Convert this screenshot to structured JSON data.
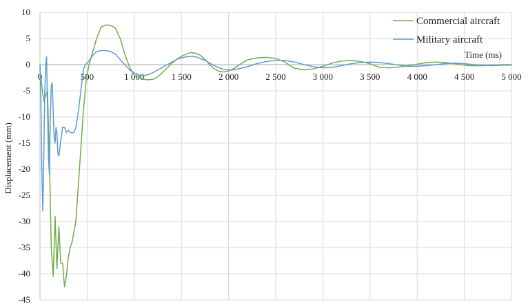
{
  "chart_data": {
    "type": "line",
    "title": "",
    "xlabel": "Time (ms)",
    "ylabel": "Displacement (mm)",
    "xlim": [
      0,
      5000
    ],
    "ylim": [
      -45,
      10
    ],
    "x_ticks": [
      0,
      500,
      1000,
      1500,
      2000,
      2500,
      3000,
      3500,
      4000,
      4500,
      5000
    ],
    "x_tick_labels": [
      "0",
      "500",
      "1 000",
      "1 500",
      "2 000",
      "2 500",
      "3 000",
      "3 500",
      "4 000",
      "4 500",
      "5 000"
    ],
    "y_ticks": [
      10,
      5,
      0,
      -5,
      -10,
      -15,
      -20,
      -25,
      -30,
      -35,
      -40,
      -45
    ],
    "y_tick_labels": [
      "10",
      "5",
      "0",
      "-5",
      "-10",
      "-15",
      "-20",
      "-25",
      "-30",
      "-35",
      "-40",
      "-45"
    ],
    "grid": true,
    "legend_position": "top-right",
    "series": [
      {
        "name": "Commercial aircraft",
        "color": "#70ad47",
        "x": [
          0,
          20,
          40,
          60,
          80,
          100,
          120,
          140,
          160,
          180,
          200,
          220,
          240,
          260,
          280,
          300,
          320,
          340,
          360,
          380,
          400,
          430,
          460,
          490,
          520,
          560,
          600,
          650,
          700,
          750,
          800,
          850,
          900,
          950,
          1000,
          1050,
          1100,
          1150,
          1200,
          1250,
          1300,
          1350,
          1400,
          1450,
          1500,
          1550,
          1600,
          1650,
          1700,
          1750,
          1800,
          1850,
          1900,
          1950,
          2000,
          2050,
          2100,
          2150,
          2200,
          2300,
          2400,
          2500,
          2600,
          2650,
          2700,
          2800,
          2900,
          3000,
          3100,
          3200,
          3300,
          3400,
          3500,
          3550,
          3600,
          3700,
          3800,
          3900,
          4000,
          4100,
          4200,
          4300,
          4400,
          4500,
          4550,
          4600,
          4700,
          4800,
          4900,
          5000
        ],
        "y": [
          -1,
          -4,
          -7,
          -6,
          -5,
          -18,
          -35,
          -40.5,
          -29,
          -39,
          -31,
          -38,
          -38,
          -42.5,
          -40.5,
          -37,
          -35,
          -34,
          -32,
          -30,
          -25,
          -17,
          -9,
          -3,
          0,
          2.5,
          5,
          7.2,
          7.6,
          7.5,
          7.0,
          5.0,
          2.0,
          -0.5,
          -2.0,
          -2.5,
          -2.8,
          -2.9,
          -2.8,
          -2.3,
          -1.5,
          -0.6,
          0.3,
          1.0,
          1.6,
          2.0,
          2.3,
          2.2,
          1.8,
          1.0,
          0.0,
          -0.8,
          -1.3,
          -1.4,
          -1.2,
          -0.8,
          -0.2,
          0.4,
          0.9,
          1.3,
          1.4,
          1.2,
          0.5,
          -0.2,
          -0.7,
          -1.0,
          -0.8,
          -0.3,
          0.3,
          0.7,
          0.8,
          0.6,
          0.2,
          -0.2,
          -0.5,
          -0.6,
          -0.5,
          -0.2,
          0.1,
          0.4,
          0.5,
          0.4,
          0.2,
          -0.1,
          -0.2,
          -0.2,
          -0.2,
          -0.1,
          0.0,
          0.0
        ]
      },
      {
        "name": "Military aircraft",
        "color": "#5b9bd5",
        "x": [
          0,
          10,
          20,
          30,
          40,
          50,
          60,
          70,
          80,
          90,
          100,
          110,
          120,
          130,
          140,
          150,
          160,
          170,
          180,
          190,
          200,
          220,
          240,
          260,
          280,
          300,
          320,
          340,
          360,
          380,
          400,
          420,
          440,
          460,
          480,
          500,
          530,
          560,
          600,
          650,
          700,
          750,
          800,
          850,
          900,
          950,
          1000,
          1050,
          1100,
          1150,
          1200,
          1250,
          1300,
          1350,
          1400,
          1450,
          1500,
          1550,
          1600,
          1650,
          1700,
          1750,
          1800,
          1850,
          1900,
          1950,
          2000,
          2050,
          2100,
          2200,
          2300,
          2400,
          2500,
          2600,
          2700,
          2800,
          2900,
          3000,
          3100,
          3200,
          3300,
          3400,
          3500,
          3600,
          3700,
          3800,
          3900,
          4000,
          4100,
          4200,
          4300,
          4400,
          4500,
          4600,
          4700,
          4800,
          4900,
          5000
        ],
        "y": [
          0,
          -7,
          -20,
          -28,
          -18,
          -6,
          0,
          1.5,
          -8,
          -18,
          -21,
          -10,
          -4,
          -3.5,
          -9,
          -14,
          -15,
          -12,
          -13,
          -17,
          -17.5,
          -14.5,
          -12,
          -12,
          -13,
          -12.5,
          -13,
          -13,
          -13,
          -12,
          -10,
          -7,
          -4,
          -1,
          0,
          0.3,
          1.0,
          1.8,
          2.5,
          2.7,
          2.7,
          2.5,
          2.0,
          1.0,
          0.0,
          -1.0,
          -1.6,
          -2.0,
          -2.1,
          -1.9,
          -1.5,
          -1.0,
          -0.5,
          0.0,
          0.5,
          1.0,
          1.3,
          1.5,
          1.6,
          1.5,
          1.2,
          0.8,
          0.3,
          -0.2,
          -0.6,
          -0.9,
          -1.0,
          -1.0,
          -0.8,
          -0.4,
          0.2,
          0.6,
          0.8,
          0.8,
          0.5,
          0.0,
          -0.4,
          -0.6,
          -0.5,
          -0.2,
          0.2,
          0.4,
          0.5,
          0.4,
          0.2,
          -0.1,
          -0.3,
          -0.3,
          -0.2,
          0.0,
          0.2,
          0.3,
          0.2,
          0.0,
          -0.1,
          -0.2,
          -0.1,
          -0.1
        ]
      }
    ]
  }
}
